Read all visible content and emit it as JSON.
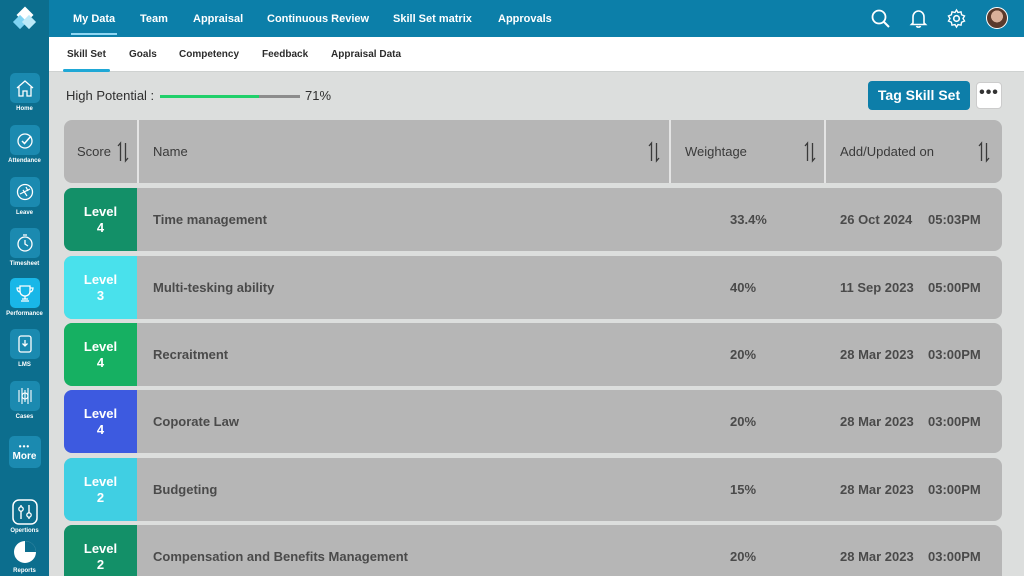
{
  "sidebar": {
    "items": [
      {
        "label": "Home",
        "icon": "home-icon"
      },
      {
        "label": "Attendance",
        "icon": "attendance-icon"
      },
      {
        "label": "Leave",
        "icon": "leave-icon"
      },
      {
        "label": "Timesheet",
        "icon": "timesheet-icon"
      },
      {
        "label": "Performance",
        "icon": "trophy-icon",
        "active": true
      },
      {
        "label": "LMS",
        "icon": "lms-icon"
      },
      {
        "label": "Cases",
        "icon": "cases-icon"
      }
    ],
    "more_label": "More",
    "options_label": "Opertions",
    "reports_label": "Reports"
  },
  "topnav": {
    "tabs": [
      "My Data",
      "Team",
      "Appraisal",
      "Continuous Review",
      "Skill Set matrix",
      "Approvals"
    ],
    "active": "My Data"
  },
  "subnav": {
    "tabs": [
      "Skill Set",
      "Goals",
      "Competency",
      "Feedback",
      "Appraisal Data"
    ],
    "active": "Skill Set"
  },
  "potential": {
    "label": "High Potential :",
    "value": 71,
    "value_text": "71%"
  },
  "actions": {
    "tag_button": "Tag Skill Set",
    "more_button": "•••"
  },
  "table": {
    "headers": [
      "Score",
      "Name",
      "Weightage",
      "Add/Updated on"
    ],
    "rows": [
      {
        "level_word": "Level",
        "level_num": "4",
        "color": "#139068",
        "name": "Time management",
        "weightage": "33.4%",
        "date": "26 Oct 2024",
        "time": "05:03PM"
      },
      {
        "level_word": "Level",
        "level_num": "3",
        "color": "#49e1ec",
        "name": "Multi-tesking ability",
        "weightage": "40%",
        "date": "11 Sep 2023",
        "time": "05:00PM"
      },
      {
        "level_word": "Level",
        "level_num": "4",
        "color": "#16b062",
        "name": "Recraitment",
        "weightage": "20%",
        "date": "28 Mar 2023",
        "time": "03:00PM"
      },
      {
        "level_word": "Level",
        "level_num": "4",
        "color": "#3d5ae0",
        "name": "Coporate Law",
        "weightage": "20%",
        "date": "28 Mar 2023",
        "time": "03:00PM"
      },
      {
        "level_word": "Level",
        "level_num": "2",
        "color": "#40cfe3",
        "name": "Budgeting",
        "weightage": "15%",
        "date": "28 Mar 2023",
        "time": "03:00PM"
      },
      {
        "level_word": "Level",
        "level_num": "2",
        "color": "#139068",
        "name": "Compensation and Benefits Management",
        "weightage": "20%",
        "date": "28 Mar 2023",
        "time": "03:00PM"
      }
    ]
  }
}
